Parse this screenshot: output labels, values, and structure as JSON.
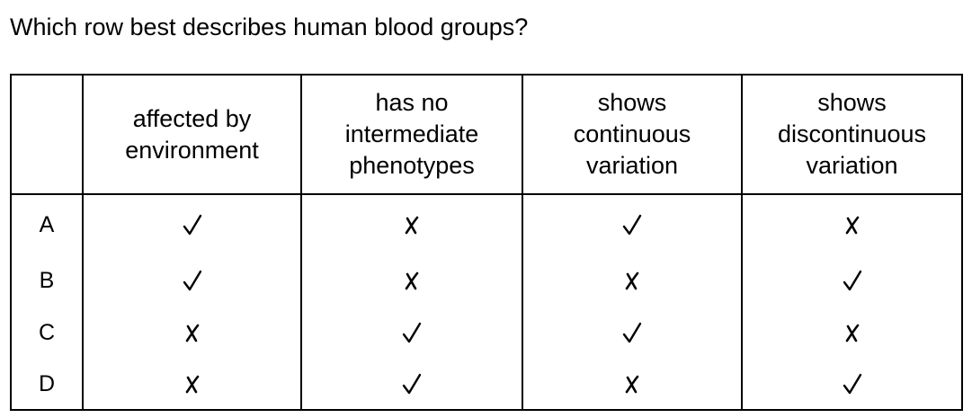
{
  "question": "Which row best describes human blood groups?",
  "table": {
    "columns": [
      "",
      "affected by\nenvironment",
      "has no\nintermediate\nphenotypes",
      "shows\ncontinuous\nvariation",
      "shows\ndiscontinuous\nvariation"
    ],
    "rows": [
      {
        "label": "A",
        "marks": [
          "tick",
          "cross",
          "tick",
          "cross"
        ]
      },
      {
        "label": "B",
        "marks": [
          "tick",
          "cross",
          "cross",
          "tick"
        ]
      },
      {
        "label": "C",
        "marks": [
          "cross",
          "tick",
          "tick",
          "cross"
        ]
      },
      {
        "label": "D",
        "marks": [
          "cross",
          "tick",
          "cross",
          "tick"
        ]
      }
    ]
  },
  "icons": {
    "tick": "check-icon",
    "cross": "cross-icon"
  }
}
